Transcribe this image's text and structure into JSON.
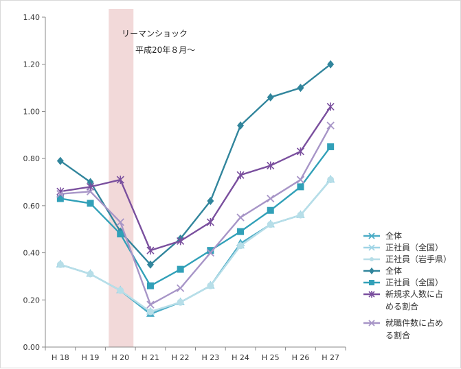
{
  "chart_data": {
    "type": "line",
    "categories": [
      "H 18",
      "H 19",
      "H 20",
      "H 21",
      "H 22",
      "H 23",
      "H 24",
      "H 25",
      "H 26",
      "H 27"
    ],
    "ylim": [
      0,
      1.4
    ],
    "yticks": [
      "0.00",
      "0.20",
      "0.40",
      "0.60",
      "0.80",
      "1.00",
      "1.20",
      "1.40"
    ],
    "ytick_values": [
      0,
      0.2,
      0.4,
      0.6,
      0.8,
      1.0,
      1.2,
      1.4
    ],
    "grid": false,
    "legend_position": "right",
    "shaded_category": "H 20",
    "annotation": {
      "line1": "リーマンショック",
      "line2": "平成20年８月～"
    },
    "series": [
      {
        "name": "全体",
        "color": "#4bacc6",
        "marker": "x",
        "values": [
          0.35,
          0.31,
          0.24,
          0.14,
          0.19,
          0.26,
          0.44,
          0.52,
          0.56,
          0.71
        ]
      },
      {
        "name": "正社員（全国）",
        "color": "#9fd4e6",
        "marker": "x",
        "values": [
          0.35,
          0.31,
          0.24,
          0.15,
          0.19,
          0.26,
          0.43,
          0.52,
          0.56,
          0.71
        ]
      },
      {
        "name": "正社員（岩手県）",
        "color": "#b7dee8",
        "marker": "circle",
        "values": [
          0.35,
          0.31,
          0.24,
          0.15,
          0.19,
          0.26,
          0.43,
          0.52,
          0.56,
          0.71
        ]
      },
      {
        "name": "全体",
        "color": "#31859c",
        "marker": "diamond",
        "values": [
          0.79,
          0.7,
          0.49,
          0.35,
          0.46,
          0.62,
          0.94,
          1.06,
          1.1,
          1.2
        ]
      },
      {
        "name": "正社員（全国）",
        "color": "#31a0b8",
        "marker": "square",
        "values": [
          0.63,
          0.61,
          0.48,
          0.26,
          0.33,
          0.41,
          0.49,
          0.58,
          0.68,
          0.85
        ]
      },
      {
        "name": "新規求人数に占める割合",
        "name_lines": [
          "新規求人数に占",
          "める割合"
        ],
        "color": "#7a4f9e",
        "marker": "star",
        "values": [
          0.66,
          0.68,
          0.71,
          0.41,
          0.45,
          0.53,
          0.73,
          0.77,
          0.83,
          1.02
        ]
      },
      {
        "name": "就職件数に占める割合",
        "name_lines": [
          "就職件数に占め",
          "る割合"
        ],
        "color": "#a795c7",
        "marker": "x",
        "values": [
          0.65,
          0.66,
          0.53,
          0.18,
          0.25,
          0.4,
          0.55,
          0.63,
          0.71,
          0.94
        ]
      }
    ]
  }
}
